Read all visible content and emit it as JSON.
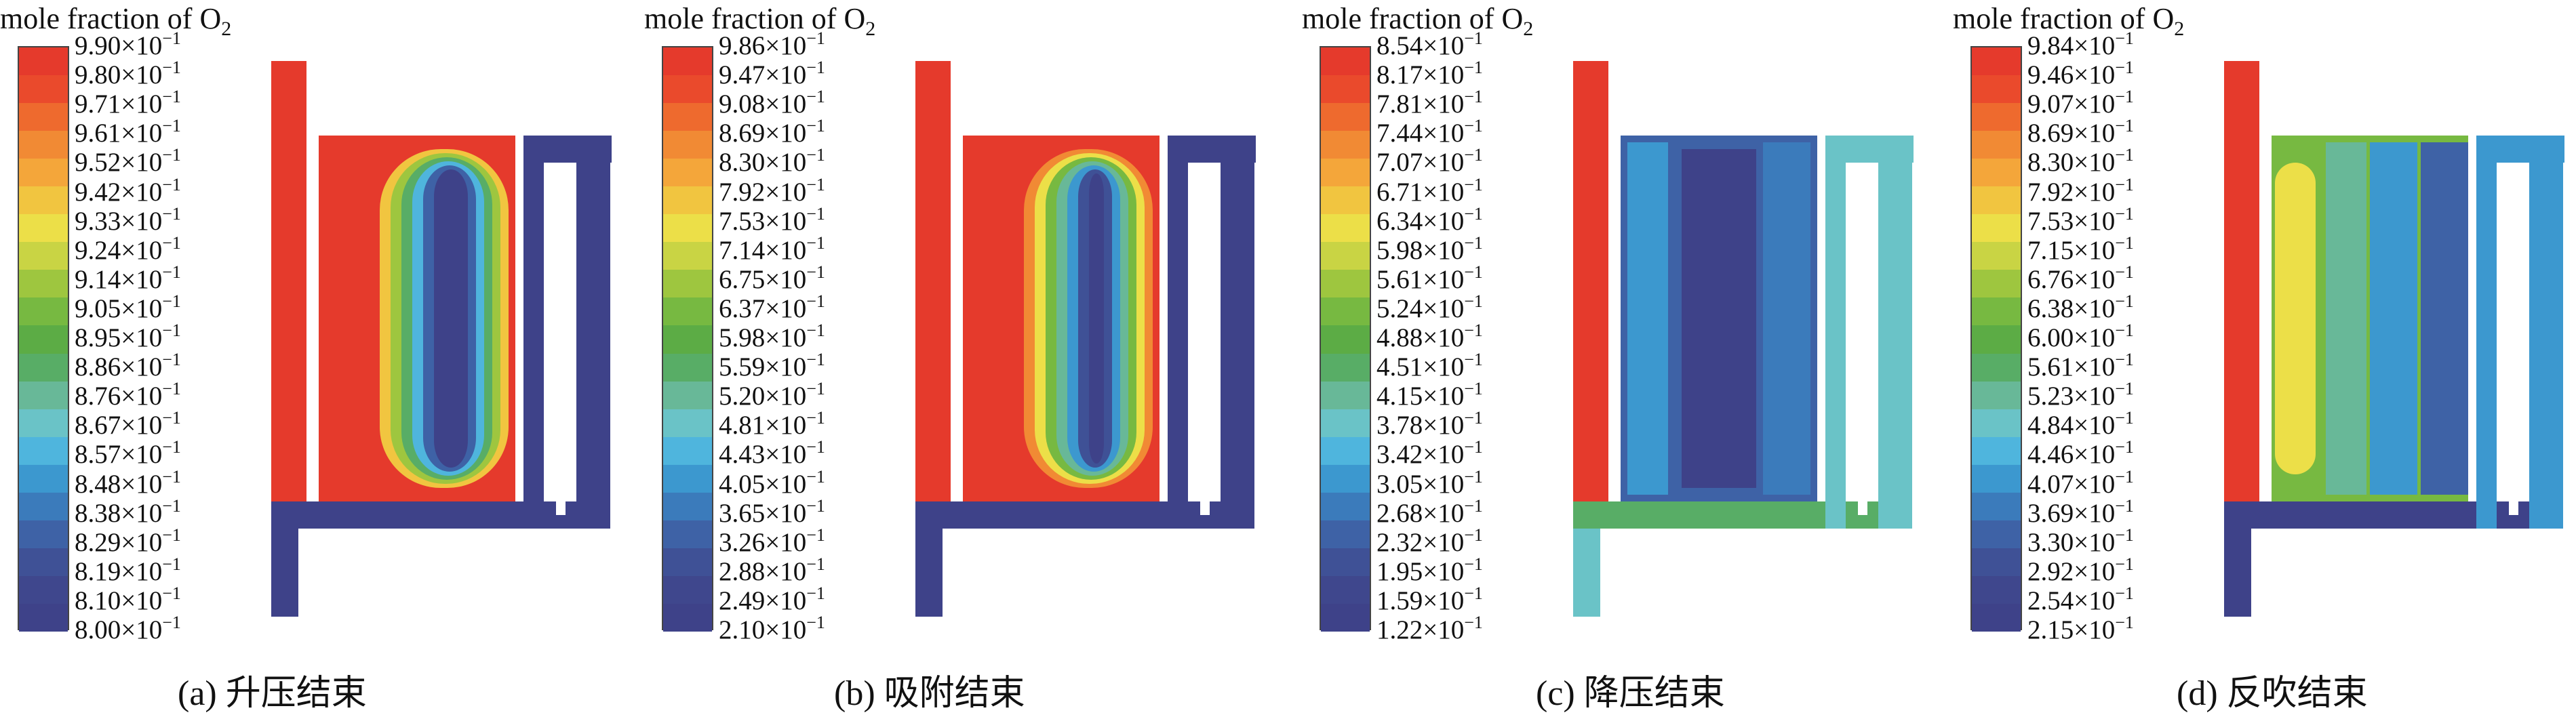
{
  "panels": [
    {
      "legend_title": "mole fraction of O",
      "legend_subscript": "2",
      "ticks": [
        "9.90×10",
        "9.80×10",
        "9.71×10",
        "9.61×10",
        "9.52×10",
        "9.42×10",
        "9.33×10",
        "9.24×10",
        "9.14×10",
        "9.05×10",
        "8.95×10",
        "8.86×10",
        "8.76×10",
        "8.67×10",
        "8.57×10",
        "8.48×10",
        "8.38×10",
        "8.29×10",
        "8.19×10",
        "8.10×10",
        "8.00×10"
      ],
      "exponent": "−1",
      "caption": "(a) 升压结束"
    },
    {
      "legend_title": "mole fraction of O",
      "legend_subscript": "2",
      "ticks": [
        "9.86×10",
        "9.47×10",
        "9.08×10",
        "8.69×10",
        "8.30×10",
        "7.92×10",
        "7.53×10",
        "7.14×10",
        "6.75×10",
        "6.37×10",
        "5.98×10",
        "5.59×10",
        "5.20×10",
        "4.81×10",
        "4.43×10",
        "4.05×10",
        "3.65×10",
        "3.26×10",
        "2.88×10",
        "2.49×10",
        "2.10×10"
      ],
      "exponent": "−1",
      "caption": "(b) 吸附结束"
    },
    {
      "legend_title": "mole fraction of O",
      "legend_subscript": "2",
      "ticks": [
        "8.54×10",
        "8.17×10",
        "7.81×10",
        "7.44×10",
        "7.07×10",
        "6.71×10",
        "6.34×10",
        "5.98×10",
        "5.61×10",
        "5.24×10",
        "4.88×10",
        "4.51×10",
        "4.15×10",
        "3.78×10",
        "3.42×10",
        "3.05×10",
        "2.68×10",
        "2.32×10",
        "1.95×10",
        "1.59×10",
        "1.22×10"
      ],
      "exponent": "−1",
      "caption": "(c) 降压结束"
    },
    {
      "legend_title": "mole fraction of O",
      "legend_subscript": "2",
      "ticks": [
        "9.84×10",
        "9.46×10",
        "9.07×10",
        "8.69×10",
        "8.30×10",
        "7.92×10",
        "7.53×10",
        "7.15×10",
        "6.76×10",
        "6.38×10",
        "6.00×10",
        "5.61×10",
        "5.23×10",
        "4.84×10",
        "4.46×10",
        "4.07×10",
        "3.69×10",
        "3.30×10",
        "2.92×10",
        "2.54×10",
        "2.15×10"
      ],
      "exponent": "−1",
      "caption": "(d) 反吹结束"
    }
  ],
  "colorbar": [
    "#e53a2c",
    "#ea4a2c",
    "#ee6a2e",
    "#f18a34",
    "#f4a63a",
    "#f1c540",
    "#ecdf48",
    "#c9d444",
    "#9ec63f",
    "#77b941",
    "#5cac45",
    "#58ad66",
    "#68b898",
    "#6ac3c7",
    "#4fb5dd",
    "#3c98cf",
    "#3b7bbb",
    "#3e62a6",
    "#3f5196",
    "#3f478d",
    "#3e4289"
  ]
}
